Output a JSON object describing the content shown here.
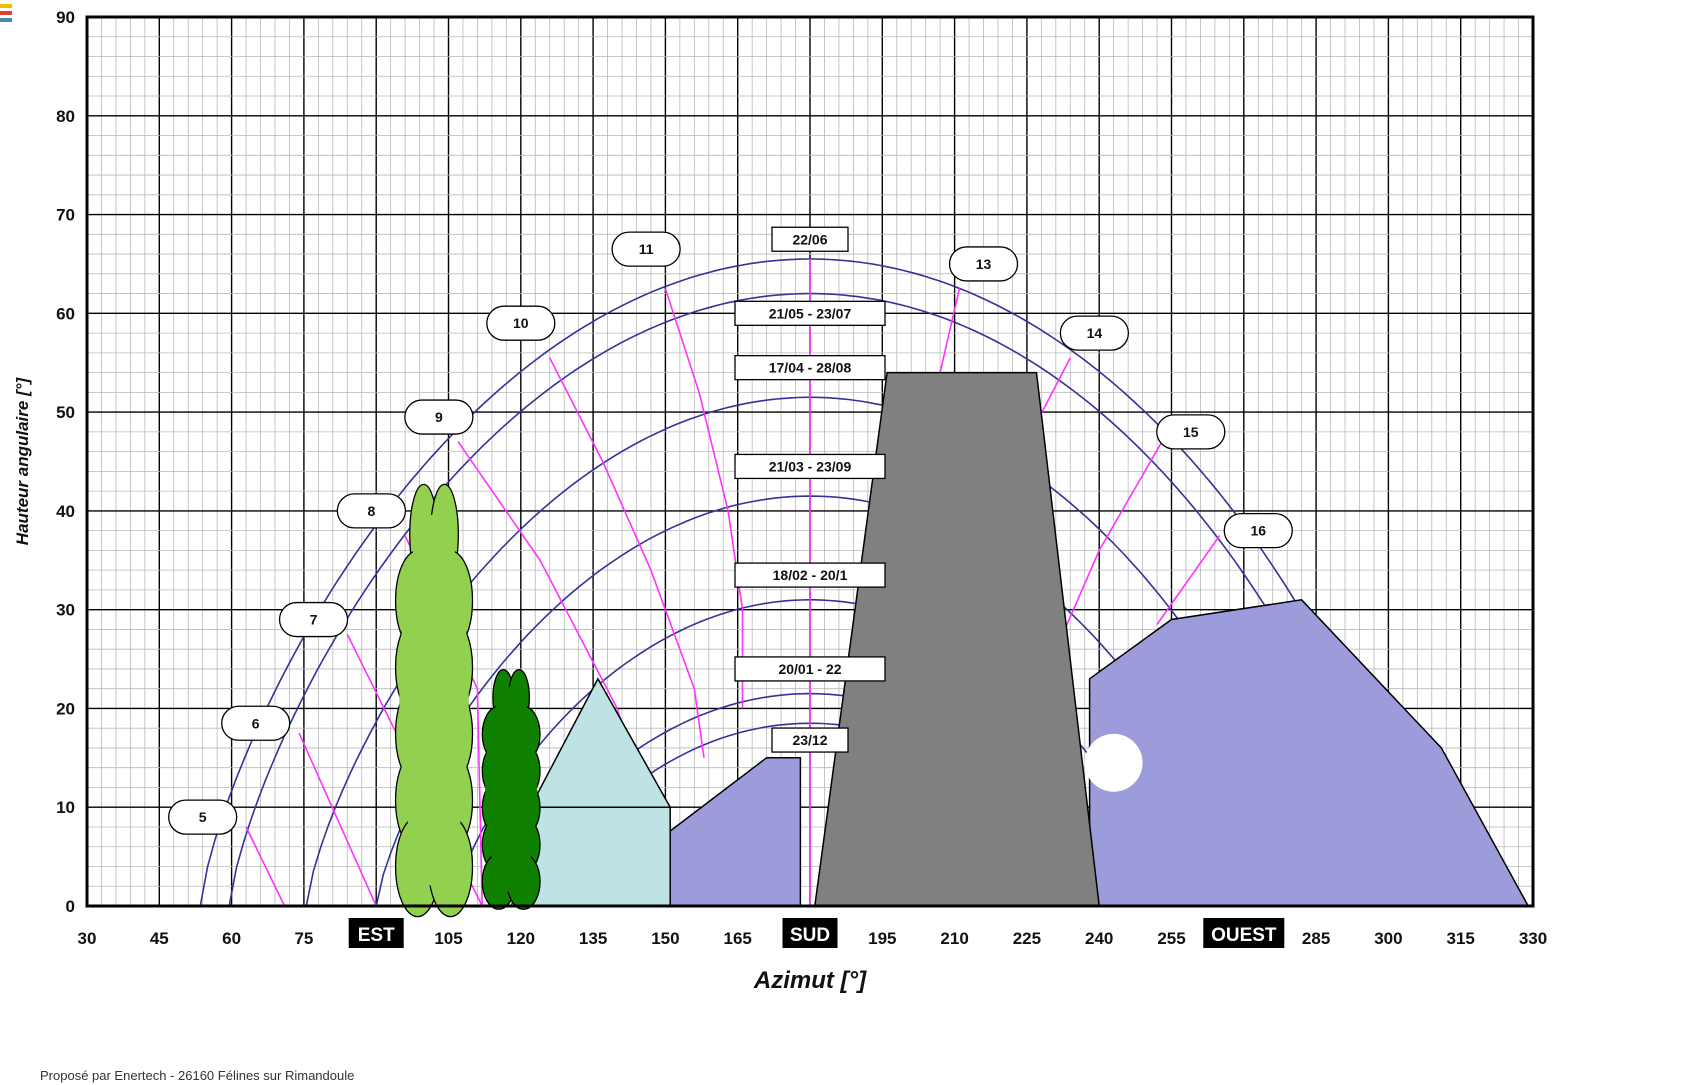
{
  "chart_data": {
    "type": "line",
    "xlabel": "Azimut [°]",
    "ylabel": "Hauteur angulaire [°]",
    "xlim": [
      30,
      330
    ],
    "ylim": [
      0,
      90
    ],
    "x_ticks": [
      "30",
      "45",
      "60",
      "75",
      "90",
      "105",
      "120",
      "135",
      "150",
      "165",
      "180",
      "195",
      "210",
      "225",
      "240",
      "255",
      "270",
      "285",
      "300",
      "315",
      "330"
    ],
    "y_ticks": [
      "0",
      "10",
      "20",
      "30",
      "40",
      "50",
      "60",
      "70",
      "80",
      "90"
    ],
    "direction_labels": [
      {
        "text": "EST",
        "x": 90
      },
      {
        "text": "SUD",
        "x": 180
      },
      {
        "text": "OUEST",
        "x": 270
      }
    ],
    "sun_paths": [
      {
        "name": "22/06",
        "peak": 65.5,
        "rise_az": 53.5,
        "sep_gap": true
      },
      {
        "name": "21/05 - 23/07",
        "peak": 62,
        "rise_az": 59.5
      },
      {
        "name": "17/04 - 28/08",
        "peak": 51.5,
        "rise_az": 75.5
      },
      {
        "name": "21/03 - 23/09",
        "peak": 41.5,
        "rise_az": 90
      },
      {
        "name": "18/02 - 20/1",
        "peak": 31,
        "rise_az": 106
      },
      {
        "name": "20/01 - 22",
        "peak": 21.5,
        "rise_az": 118
      },
      {
        "name": "23/12",
        "peak": 18.5,
        "rise_az": 124
      }
    ],
    "hour_lines": [
      {
        "label": "5",
        "points": [
          [
            63,
            8
          ],
          [
            71,
            0
          ]
        ],
        "label_pos": [
          54,
          9
        ]
      },
      {
        "label": "6",
        "points": [
          [
            74,
            17.5
          ],
          [
            90,
            0
          ]
        ],
        "label_pos": [
          65,
          18.5
        ]
      },
      {
        "label": "7",
        "points": [
          [
            84,
            27.5
          ],
          [
            112,
            0
          ]
        ],
        "label_pos": [
          77,
          29
        ]
      },
      {
        "label": "8",
        "points": [
          [
            96,
            37.5
          ],
          [
            111,
            22
          ],
          [
            112,
            0
          ]
        ],
        "label_pos": [
          89,
          40
        ]
      },
      {
        "label": "9",
        "points": [
          [
            107,
            47
          ],
          [
            124,
            35
          ],
          [
            140,
            20
          ],
          [
            145,
            12
          ]
        ],
        "label_pos": [
          103,
          49.5
        ]
      },
      {
        "label": "10",
        "points": [
          [
            126,
            55.5
          ],
          [
            137,
            45
          ],
          [
            147,
            34
          ],
          [
            156,
            22
          ],
          [
            158,
            15
          ]
        ],
        "label_pos": [
          120,
          59
        ]
      },
      {
        "label": "11",
        "points": [
          [
            150,
            62.5
          ],
          [
            157,
            52
          ],
          [
            163,
            40
          ],
          [
            166,
            30
          ],
          [
            166,
            20
          ]
        ],
        "label_pos": [
          146,
          66.5
        ]
      },
      {
        "label": "13",
        "points": [
          [
            211,
            62.5
          ],
          [
            207,
            54
          ]
        ],
        "label_pos": [
          216,
          65
        ]
      },
      {
        "label": "14",
        "points": [
          [
            234,
            55.5
          ],
          [
            226,
            48
          ]
        ],
        "label_pos": [
          239,
          58
        ]
      },
      {
        "label": "15",
        "points": [
          [
            253,
            47
          ],
          [
            240,
            36
          ],
          [
            232,
            27
          ]
        ],
        "label_pos": [
          259,
          48
        ]
      },
      {
        "label": "16",
        "points": [
          [
            265,
            37.5
          ],
          [
            252,
            28.5
          ]
        ],
        "label_pos": [
          273,
          38
        ]
      }
    ],
    "meridian_x": 180,
    "obstacles": {
      "hills": [
        [
          [
            144,
            5
          ],
          [
            171,
            15
          ],
          [
            178,
            15
          ],
          [
            178,
            0
          ],
          [
            150,
            0
          ]
        ],
        [
          [
            238,
            23
          ],
          [
            255,
            29
          ],
          [
            282,
            31
          ],
          [
            311,
            16
          ],
          [
            329,
            0
          ],
          [
            238,
            0
          ]
        ]
      ],
      "tower": [
        [
          196,
          54
        ],
        [
          227,
          54
        ],
        [
          240,
          0
        ],
        [
          181,
          0
        ]
      ],
      "house_base": [
        [
          122,
          0
        ],
        [
          122,
          10
        ],
        [
          151,
          10
        ],
        [
          151,
          0
        ]
      ],
      "house_roof": [
        [
          122,
          10
        ],
        [
          136,
          23
        ],
        [
          151,
          10
        ]
      ],
      "tree_light": {
        "cx": 102,
        "cy": 20,
        "rx": 8,
        "ry": 21,
        "top": 41
      },
      "tree_dark": {
        "cx": 118,
        "cy": 11,
        "rx": 6,
        "ry": 11,
        "top": 23
      },
      "sun_disc": {
        "cx": 243,
        "cy": 14.5,
        "r": 6
      }
    }
  },
  "footer": "Proposé par Enertech - 26160 Félines sur Rimandoule",
  "colors": {
    "grid_minor": "#b9b9b9",
    "grid_major": "#000000",
    "sun_path": "#333399",
    "hour_line": "#ff33ff",
    "hill": "#9c9cda",
    "tower": "#808080",
    "house": "#bde3e4",
    "tree_light": "#92d050",
    "tree_dark": "#0f8000",
    "sun_disc": "#ffffff"
  }
}
